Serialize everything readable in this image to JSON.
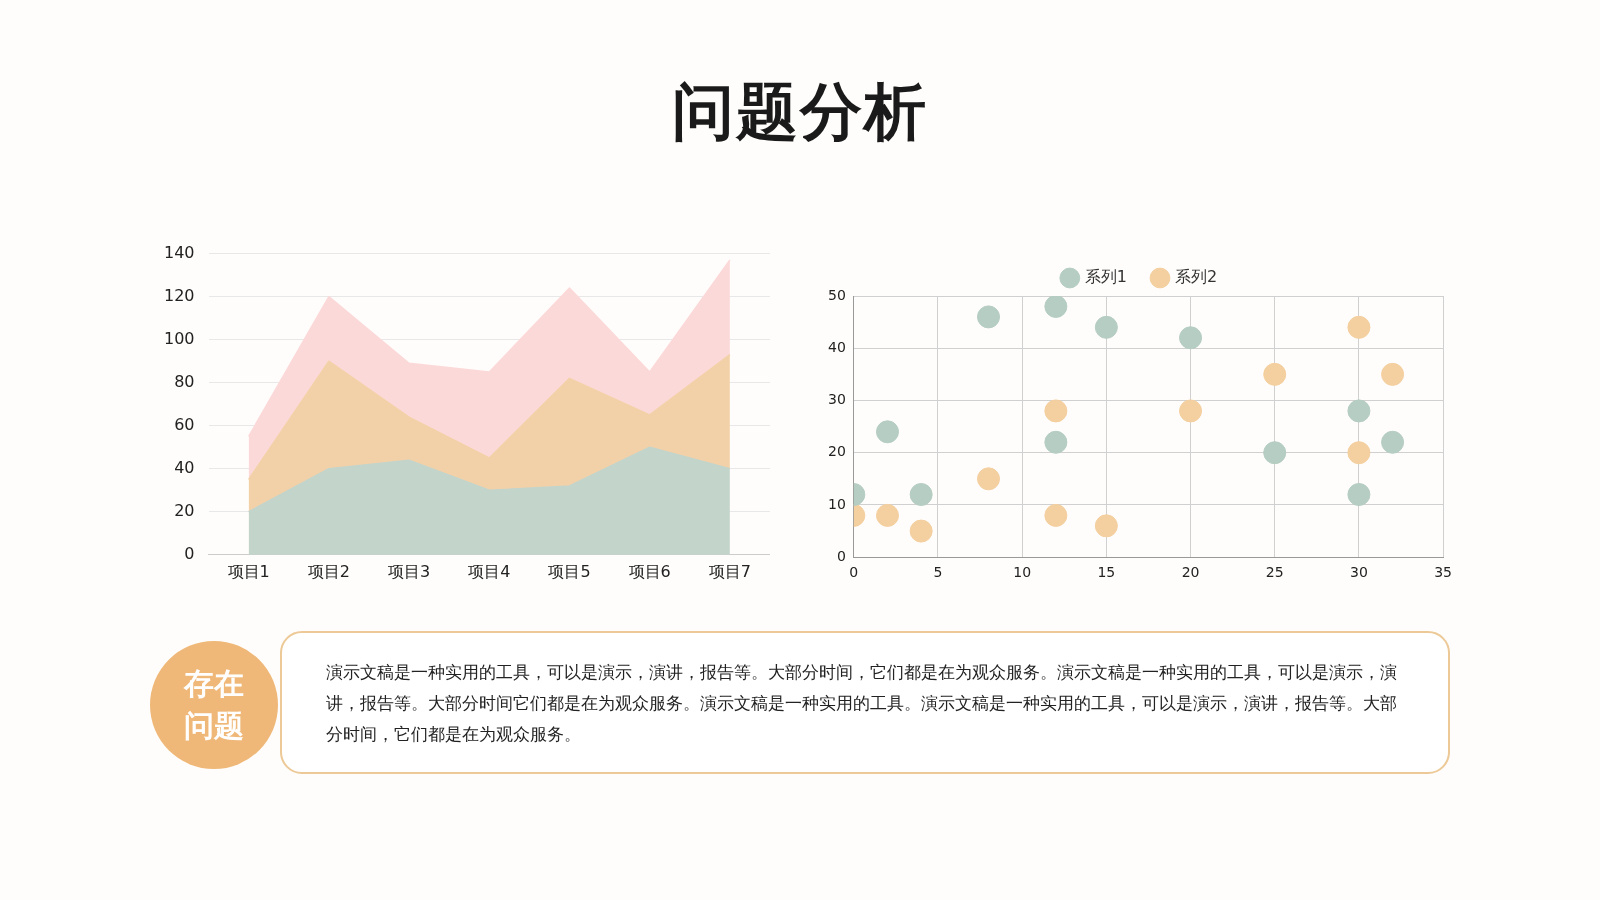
{
  "chart_data": [
    {
      "type": "area",
      "title": "问题分析",
      "categories": [
        "项目1",
        "项目2",
        "项目3",
        "项目4",
        "项目5",
        "项目6",
        "项目7"
      ],
      "stacked": true,
      "series": [
        {
          "color": "#c3d4cb",
          "values": [
            20,
            40,
            44,
            30,
            32,
            50,
            40
          ]
        },
        {
          "color": "#f3d1a8",
          "values": [
            15,
            50,
            20,
            15,
            50,
            15,
            53
          ]
        },
        {
          "color": "#fcd9d9",
          "values": [
            20,
            30,
            25,
            40,
            42,
            20,
            44
          ]
        }
      ],
      "ylim": [
        0,
        140
      ],
      "yticks": [
        0,
        20,
        40,
        60,
        80,
        100,
        120,
        140
      ],
      "grid": "y"
    },
    {
      "type": "scatter",
      "legend": "top",
      "marker": "circle",
      "grid": true,
      "series": [
        {
          "name": "系列1",
          "color": "#b5cdc2",
          "x": [
            0,
            2,
            4,
            8,
            12,
            12,
            15,
            20,
            25,
            30,
            30,
            32
          ],
          "values": [
            12,
            24,
            12,
            46,
            48,
            22,
            44,
            42,
            20,
            28,
            12,
            22
          ]
        },
        {
          "name": "系列2",
          "color": "#f4cf9f",
          "x": [
            0,
            2,
            4,
            8,
            12,
            12,
            15,
            20,
            25,
            30,
            30,
            32
          ],
          "values": [
            8,
            8,
            5,
            15,
            28,
            8,
            6,
            28,
            35,
            44,
            20,
            35
          ]
        }
      ],
      "xlim": [
        0,
        35
      ],
      "xticks": [
        0,
        5,
        10,
        15,
        20,
        25,
        30,
        35
      ],
      "ylim": [
        0,
        50
      ],
      "yticks": [
        0,
        10,
        20,
        30,
        40,
        50
      ]
    },
    {
      "type": "other",
      "title": "存在问题",
      "annotations": [
        "演示文稿是一种实用的工具，可以是演示，演讲，报告等。大部分时间，它们都是在为观众服务。演示文稿是一种实用的工具，可以是演示，演讲，报告等。大部分时间它们都是在为观众服务。演示文稿是一种实用的工具。演示文稿是一种实用的工具，可以是演示，演讲，报告等。大部分时间，它们都是在为观众服务。"
      ]
    }
  ]
}
